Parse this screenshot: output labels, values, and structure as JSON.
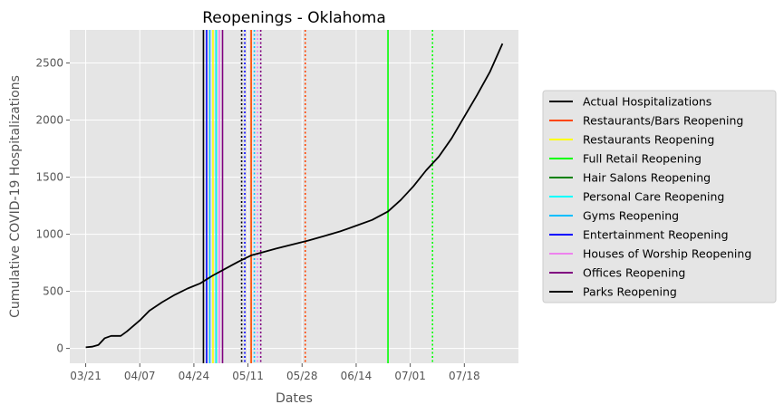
{
  "chart_data": {
    "type": "line",
    "title": "Reopenings - Oklahoma",
    "xlabel": "Dates",
    "ylabel": "Cumulative COVID-19 Hospitalizations",
    "x_ticks": [
      "03/21",
      "04/07",
      "04/24",
      "05/11",
      "05/28",
      "06/14",
      "07/01",
      "07/18"
    ],
    "y_ticks": [
      0,
      500,
      1000,
      1500,
      2000,
      2500
    ],
    "xlim": [
      "2020-03-16",
      "2020-08-04"
    ],
    "ylim": [
      -130,
      2790
    ],
    "grid": true,
    "legend_position": "right",
    "series": [
      {
        "name": "Actual Hospitalizations",
        "color": "#000000",
        "dates": [
          "2020-03-21",
          "2020-03-23",
          "2020-03-25",
          "2020-03-27",
          "2020-03-29",
          "2020-04-01",
          "2020-04-03",
          "2020-04-07",
          "2020-04-10",
          "2020-04-14",
          "2020-04-18",
          "2020-04-22",
          "2020-04-26",
          "2020-04-30",
          "2020-05-04",
          "2020-05-08",
          "2020-05-12",
          "2020-05-16",
          "2020-05-20",
          "2020-05-25",
          "2020-05-30",
          "2020-06-04",
          "2020-06-09",
          "2020-06-14",
          "2020-06-19",
          "2020-06-24",
          "2020-06-28",
          "2020-07-02",
          "2020-07-06",
          "2020-07-10",
          "2020-07-14",
          "2020-07-18",
          "2020-07-22",
          "2020-07-26",
          "2020-07-30"
        ],
        "values": [
          10,
          15,
          30,
          90,
          110,
          110,
          150,
          245,
          330,
          405,
          470,
          525,
          570,
          640,
          700,
          760,
          815,
          845,
          875,
          910,
          945,
          985,
          1025,
          1075,
          1125,
          1200,
          1300,
          1420,
          1560,
          1680,
          1840,
          2030,
          2220,
          2420,
          2670
        ]
      }
    ],
    "event_lines": [
      {
        "name": "Parks Reopening",
        "color": "#000000",
        "date": "2020-04-27",
        "style": "solid",
        "in_legend": true
      },
      {
        "name": "Entertainment Reopening",
        "color": "#0000ff",
        "date": "2020-04-28",
        "style": "solid",
        "in_legend": true
      },
      {
        "name": "Gyms Reopening",
        "color": "#00bfff",
        "date": "2020-04-29",
        "style": "solid",
        "in_legend": true
      },
      {
        "name": "Restaurants Reopening",
        "color": "#ffff00",
        "date": "2020-04-30",
        "style": "solid",
        "in_legend": true
      },
      {
        "name": "Hair Salons Reopening",
        "color": "#008000",
        "date": "2020-05-01",
        "style": "solid",
        "in_legend": true
      },
      {
        "name": "Personal Care Reopening",
        "color": "#00ffff",
        "date": "2020-05-01",
        "style": "solid",
        "in_legend": true
      },
      {
        "name": "Houses of Worship Reopening",
        "color": "#ee82ee",
        "date": "2020-05-02",
        "style": "solid",
        "in_legend": true
      },
      {
        "name": "Offices Reopening",
        "color": "#800080",
        "date": "2020-05-03",
        "style": "solid",
        "in_legend": true
      },
      {
        "name": "",
        "color": "#000000",
        "date": "2020-05-09",
        "style": "dotted",
        "in_legend": false
      },
      {
        "name": "",
        "color": "#0000ff",
        "date": "2020-05-10",
        "style": "dotted",
        "in_legend": false
      },
      {
        "name": "",
        "color": "#ffff00",
        "date": "2020-05-12",
        "style": "dotted",
        "in_legend": false
      },
      {
        "name": "Restaurants/Bars Reopening",
        "color": "#ff4500",
        "date": "2020-05-12",
        "style": "solid",
        "in_legend": true
      },
      {
        "name": "",
        "color": "#00bfff",
        "date": "2020-05-13",
        "style": "dotted",
        "in_legend": false
      },
      {
        "name": "",
        "color": "#ee82ee",
        "date": "2020-05-14",
        "style": "dotted",
        "in_legend": false
      },
      {
        "name": "",
        "color": "#800080",
        "date": "2020-05-15",
        "style": "dotted",
        "in_legend": false
      },
      {
        "name": "",
        "color": "#ff4500",
        "date": "2020-05-29",
        "style": "dotted",
        "in_legend": false
      },
      {
        "name": "Full Retail Reopening",
        "color": "#00ff00",
        "date": "2020-06-24",
        "style": "solid",
        "in_legend": true
      },
      {
        "name": "",
        "color": "#00ff00",
        "date": "2020-07-08",
        "style": "dotted",
        "in_legend": false
      }
    ],
    "legend": [
      {
        "label": "Actual Hospitalizations",
        "color": "#000000"
      },
      {
        "label": "Restaurants/Bars Reopening",
        "color": "#ff4500"
      },
      {
        "label": "Restaurants Reopening",
        "color": "#ffff00"
      },
      {
        "label": "Full Retail Reopening",
        "color": "#00ff00"
      },
      {
        "label": "Hair Salons Reopening",
        "color": "#008000"
      },
      {
        "label": "Personal Care Reopening",
        "color": "#00ffff"
      },
      {
        "label": "Gyms Reopening",
        "color": "#00bfff"
      },
      {
        "label": "Entertainment Reopening",
        "color": "#0000ff"
      },
      {
        "label": "Houses of Worship Reopening",
        "color": "#ee82ee"
      },
      {
        "label": "Offices Reopening",
        "color": "#800080"
      },
      {
        "label": "Parks Reopening",
        "color": "#000000"
      }
    ]
  }
}
